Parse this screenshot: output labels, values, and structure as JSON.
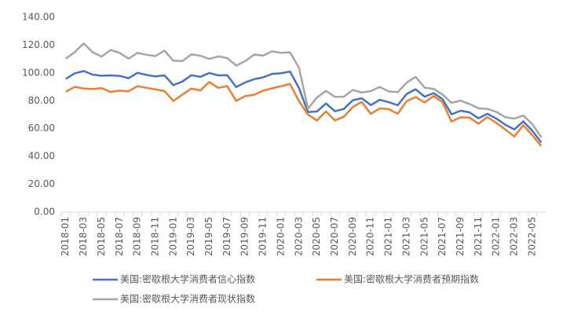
{
  "chart_data": {
    "type": "line",
    "categories": [
      "2018-01",
      null,
      "2018-03",
      null,
      "2018-05",
      null,
      "2018-07",
      null,
      "2018-09",
      null,
      "2018-11",
      null,
      "2019-01",
      null,
      "2019-03",
      null,
      "2019-05",
      null,
      "2019-07",
      null,
      "2019-09",
      null,
      "2019-11",
      null,
      "2020-01",
      null,
      "2020-03",
      null,
      "2020-05",
      null,
      "2020-07",
      null,
      "2020-09",
      null,
      "2020-11",
      null,
      "2021-01",
      null,
      "2021-03",
      null,
      "2021-05",
      null,
      "2021-07",
      null,
      "2021-09",
      null,
      "2021-11",
      null,
      "2022-01",
      null,
      "2022-03",
      null,
      "2022-05",
      null
    ],
    "series": [
      {
        "name": "美国:密歇根大学消费者信心指数",
        "color": "#4472c4",
        "values": [
          95.7,
          99.7,
          101.4,
          98.8,
          98.0,
          98.2,
          97.9,
          96.2,
          100.1,
          98.6,
          97.5,
          98.3,
          91.2,
          93.8,
          98.4,
          97.2,
          100.0,
          98.2,
          98.4,
          89.8,
          93.2,
          95.5,
          96.8,
          99.3,
          99.8,
          101.0,
          89.1,
          71.8,
          72.3,
          78.1,
          72.5,
          74.1,
          80.4,
          81.8,
          76.9,
          80.7,
          79.0,
          76.8,
          84.9,
          88.3,
          82.9,
          85.5,
          81.2,
          70.3,
          72.8,
          71.7,
          67.4,
          70.6,
          67.2,
          62.8,
          59.4,
          65.2,
          58.4,
          50.0
        ]
      },
      {
        "name": "美国:密歇根大学消费者预期指数",
        "color": "#ed7d31",
        "values": [
          86.5,
          90.0,
          88.8,
          88.4,
          89.1,
          86.3,
          87.3,
          86.8,
          90.5,
          89.3,
          88.2,
          87.0,
          79.9,
          84.4,
          88.8,
          87.4,
          93.5,
          89.3,
          90.5,
          79.9,
          83.4,
          84.2,
          87.3,
          88.9,
          90.5,
          92.1,
          79.7,
          70.1,
          65.9,
          72.3,
          65.9,
          68.5,
          75.6,
          79.2,
          70.5,
          74.6,
          74.0,
          70.7,
          79.7,
          82.7,
          78.8,
          83.5,
          79.0,
          65.1,
          68.1,
          67.9,
          63.5,
          68.3,
          64.1,
          59.4,
          54.3,
          62.5,
          55.2,
          47.5
        ]
      },
      {
        "name": "美国:密歇根大学消费者现状指数",
        "color": "#a5a5a5",
        "values": [
          110.3,
          114.9,
          121.2,
          114.9,
          111.8,
          116.5,
          114.4,
          110.3,
          114.4,
          113.1,
          112.1,
          116.1,
          108.8,
          108.5,
          113.3,
          112.4,
          110.0,
          111.9,
          110.7,
          105.3,
          108.5,
          113.2,
          112.5,
          115.5,
          114.4,
          114.8,
          103.7,
          74.3,
          82.3,
          87.1,
          82.8,
          82.9,
          87.8,
          85.9,
          87.0,
          90.0,
          86.7,
          86.2,
          93.0,
          97.2,
          89.4,
          88.6,
          84.5,
          78.5,
          80.1,
          77.7,
          74.6,
          74.2,
          72.0,
          68.2,
          67.2,
          69.4,
          63.3,
          53.8
        ]
      }
    ],
    "ylim": [
      0,
      140
    ],
    "yticks": [
      {
        "value": 0,
        "label": "0.00"
      },
      {
        "value": 20,
        "label": "20.00"
      },
      {
        "value": 40,
        "label": "40.00"
      },
      {
        "value": 60,
        "label": "60.00"
      },
      {
        "value": 80,
        "label": "80.00"
      },
      {
        "value": 100,
        "label": "100.00"
      },
      {
        "value": 120,
        "label": "120.00"
      },
      {
        "value": 140,
        "label": "140.00"
      }
    ],
    "grid": false
  }
}
